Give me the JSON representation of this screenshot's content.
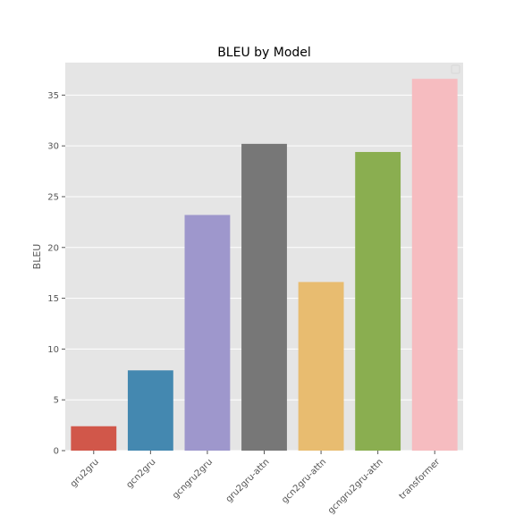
{
  "chart_data": {
    "type": "bar",
    "title": "BLEU by Model",
    "xlabel": "",
    "ylabel": "BLEU",
    "categories": [
      "gru2gru",
      "gcn2gru",
      "gcngru2gru",
      "gru2gru-attn",
      "gcn2gru-attn",
      "gcngru2gru-attn",
      "transformer"
    ],
    "values": [
      2.4,
      7.9,
      23.2,
      30.2,
      16.6,
      29.4,
      36.6
    ],
    "colors": [
      "#d1574a",
      "#4488b0",
      "#9e97cc",
      "#777777",
      "#e8bc70",
      "#8aae50",
      "#f6bcc0"
    ],
    "ylim": [
      0,
      38.2
    ],
    "yticks": [
      0,
      5,
      10,
      15,
      20,
      25,
      30,
      35
    ],
    "grid": true,
    "legend": "top-right (empty)",
    "style": {
      "plot_background": "#e5e5e5",
      "grid_color": "#ffffff"
    }
  }
}
